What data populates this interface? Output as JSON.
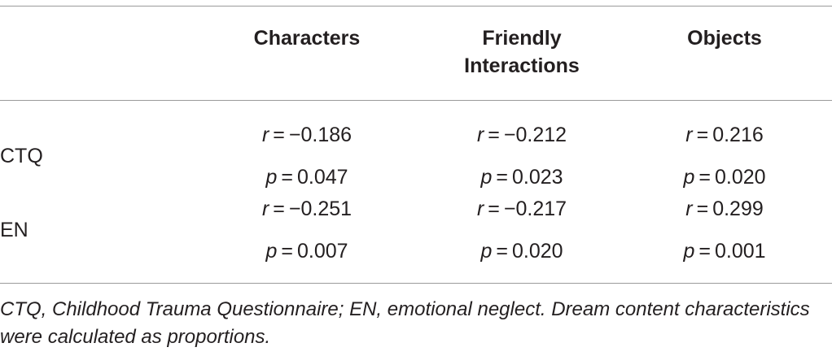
{
  "table": {
    "columns": [
      "Characters",
      "Friendly Interactions",
      "Objects"
    ],
    "column_header_lines": [
      [
        "Characters"
      ],
      [
        "Friendly",
        "Interactions"
      ],
      [
        "Objects"
      ]
    ],
    "rows": [
      {
        "label": "CTQ",
        "r": [
          "r = −0.186",
          "r = −0.212",
          "r = 0.216"
        ],
        "p": [
          "p = 0.047",
          "p = 0.023",
          "p = 0.020"
        ]
      },
      {
        "label": "EN",
        "r": [
          "r = −0.251",
          "r = −0.217",
          "r = 0.299"
        ],
        "p": [
          "p = 0.007",
          "p = 0.020",
          "p = 0.001"
        ]
      }
    ],
    "cells": {
      "ctq": {
        "r_values": [
          "−0.186",
          "−0.212",
          "0.216"
        ],
        "p_values": [
          "0.047",
          "0.023",
          "0.020"
        ]
      },
      "en": {
        "r_values": [
          "−0.251",
          "−0.217",
          "0.299"
        ],
        "p_values": [
          "0.007",
          "0.020",
          "0.001"
        ]
      }
    },
    "symbols": {
      "r": "r",
      "p": "p",
      "equals": " = "
    },
    "row_labels": {
      "ctq": "CTQ",
      "en": "EN"
    },
    "footnote": "CTQ, Childhood Trauma Questionnaire; EN, emotional neglect. Dream content characteristics were calculated as proportions."
  }
}
